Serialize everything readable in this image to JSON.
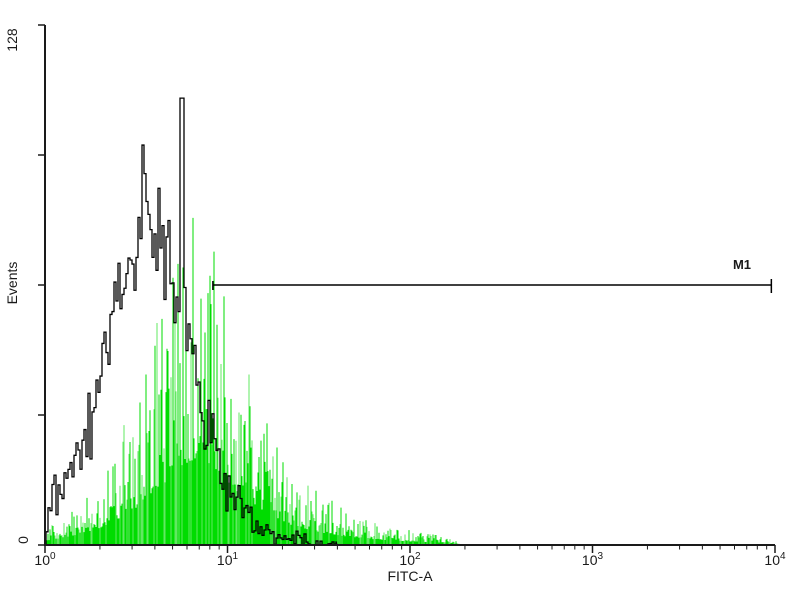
{
  "chart_data": {
    "type": "area",
    "subtype": "flow-cytometry-histogram-overlay",
    "title": "",
    "xlabel": "FITC-A",
    "ylabel": "Events",
    "x_scale": "log10",
    "x_log_range": [
      0,
      4
    ],
    "ylim": [
      0,
      128
    ],
    "y_max_label": "128",
    "y_min_label": "0",
    "y_tick_events": [
      0,
      32,
      64,
      96,
      128
    ],
    "x_ticks": [
      {
        "base": "10",
        "exp": "0"
      },
      {
        "base": "10",
        "exp": "1"
      },
      {
        "base": "10",
        "exp": "2"
      },
      {
        "base": "10",
        "exp": "3"
      },
      {
        "base": "10",
        "exp": "4"
      }
    ],
    "grid": false,
    "legend": "none",
    "marker_gate": {
      "label": "M1",
      "events_y": 64,
      "log_x_start": 0.92,
      "log_x_end": 3.98
    },
    "noise_seed": 20240613,
    "series": [
      {
        "name": "black-open-trace",
        "style": "open-step-trace",
        "color": "#000000",
        "envelope_log_x": [
          0.0,
          0.04,
          0.1,
          0.18,
          0.26,
          0.33,
          0.4,
          0.47,
          0.53,
          0.58,
          0.63,
          0.68,
          0.73,
          0.78,
          0.83,
          0.88,
          0.93,
          0.98,
          1.04,
          1.1,
          1.16,
          1.22,
          1.3,
          1.45,
          1.6
        ],
        "envelope_events": [
          2,
          12,
          14,
          22,
          32,
          48,
          62,
          76,
          86,
          82,
          73,
          66,
          58,
          50,
          40,
          28,
          22,
          17,
          12,
          8,
          5,
          3,
          1.5,
          0.8,
          0
        ],
        "outlier_spike": {
          "log_x": 0.745,
          "events": 110
        }
      },
      {
        "name": "green-filled-spikes",
        "style": "filled-spikes",
        "color": "#00DC00",
        "color_light": "#62E862",
        "envelope_log_x": [
          0.0,
          0.1,
          0.2,
          0.3,
          0.4,
          0.5,
          0.6,
          0.7,
          0.78,
          0.85,
          0.95,
          1.05,
          1.15,
          1.25,
          1.35,
          1.5,
          1.7,
          1.9,
          2.1,
          2.25,
          2.3
        ],
        "envelope_events": [
          3,
          5,
          8,
          12,
          18,
          26,
          36,
          50,
          58,
          62,
          52,
          38,
          28,
          20,
          14,
          9,
          5,
          3,
          2,
          1,
          0
        ],
        "peak_spike_events": 90
      }
    ]
  }
}
